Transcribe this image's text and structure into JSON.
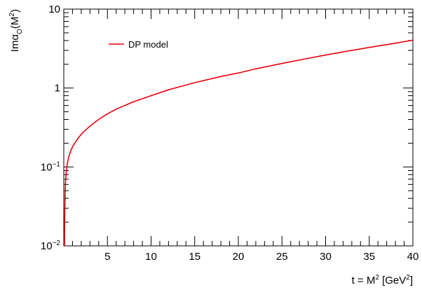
{
  "chart_data": {
    "type": "line",
    "xlabel": {
      "main": "t = M",
      "sup1": "2",
      "mid": " [GeV",
      "sup2": "2",
      "end": "]"
    },
    "ylabel": {
      "im": "Im",
      "alpha": "α",
      "sub": "O",
      "open": "(M",
      "sup": "2",
      "close": ")"
    },
    "xlim": [
      0,
      40
    ],
    "ylim": [
      0.01,
      10
    ],
    "yscale": "log",
    "grid": false,
    "legend_position": "top-left",
    "x_ticks": [
      5,
      10,
      15,
      20,
      25,
      30,
      35,
      40
    ],
    "x_tick_labels": [
      "5",
      "10",
      "15",
      "20",
      "25",
      "30",
      "35",
      "40"
    ],
    "y_ticks": [
      {
        "value": 0.01,
        "base": "10",
        "exp": "−2"
      },
      {
        "value": 0.1,
        "base": "10",
        "exp": "−1"
      },
      {
        "value": 1,
        "base": "1",
        "exp": ""
      },
      {
        "value": 10,
        "base": "10",
        "exp": ""
      }
    ],
    "series": [
      {
        "name": "DP model",
        "color": "#e8000b",
        "x": [
          0.08,
          0.1,
          0.15,
          0.2,
          0.3,
          0.4,
          0.5,
          0.7,
          1,
          1.5,
          2,
          3,
          4,
          5,
          6,
          8,
          10,
          12,
          15,
          18,
          20,
          22,
          25,
          28,
          30,
          32,
          35,
          38,
          40
        ],
        "y": [
          0.01,
          0.02,
          0.045,
          0.065,
          0.09,
          0.11,
          0.125,
          0.15,
          0.18,
          0.22,
          0.26,
          0.33,
          0.4,
          0.47,
          0.54,
          0.67,
          0.8,
          0.95,
          1.17,
          1.4,
          1.55,
          1.75,
          2.05,
          2.38,
          2.62,
          2.87,
          3.27,
          3.7,
          4.05
        ]
      }
    ]
  }
}
